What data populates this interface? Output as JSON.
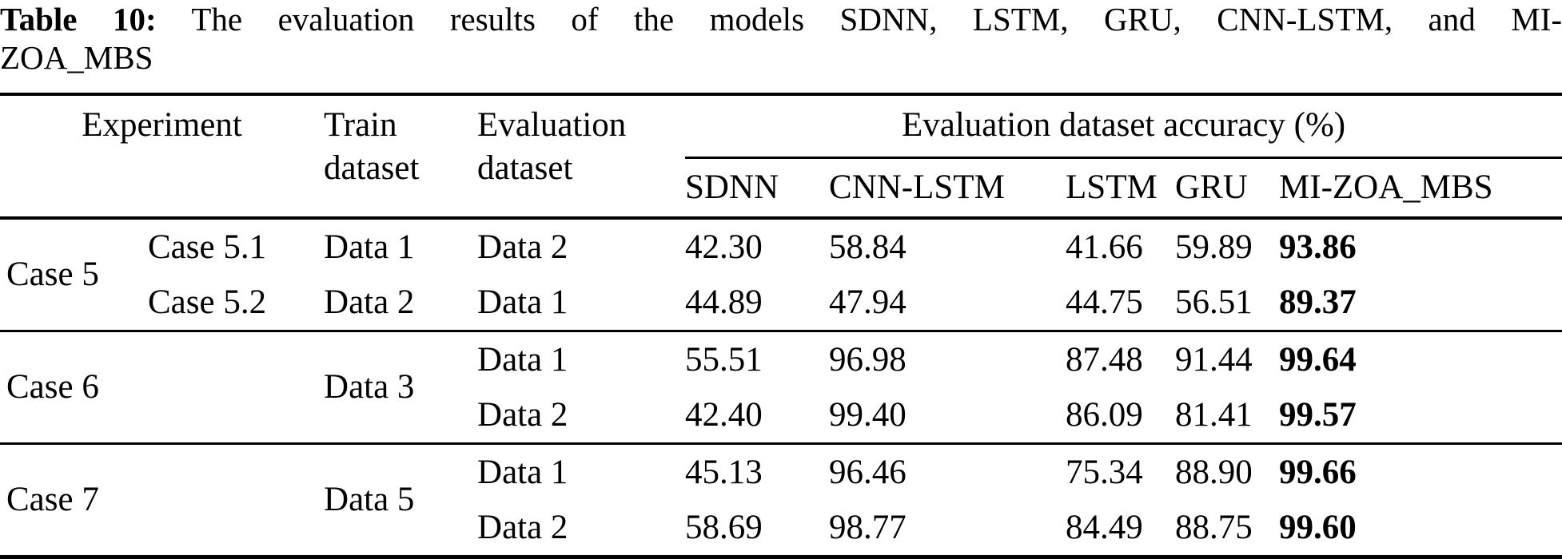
{
  "caption": {
    "label": "Table 10:",
    "line1_rest": "The evaluation results of the models SDNN, LSTM, GRU, CNN-LSTM, and MI-",
    "line2": "ZOA_MBS"
  },
  "table": {
    "columns": {
      "experiment": "Experiment",
      "train_dataset": "Train dataset",
      "evaluation_dataset": "Evaluation dataset",
      "accuracy_group": "Evaluation dataset accuracy (%)",
      "models": {
        "sdnn": "SDNN",
        "cnn_lstm": "CNN-LSTM",
        "lstm": "LSTM",
        "gru": "GRU",
        "mi_zoa_mbs": "MI-ZOA_MBS"
      }
    },
    "groups": [
      {
        "label": "Case 5",
        "rows": [
          {
            "sub_case": "Case 5.1",
            "train": "Data 1",
            "eval": "Data 2",
            "sdnn": "42.30",
            "cnn_lstm": "58.84",
            "lstm": "41.66",
            "gru": "59.89",
            "mi_zoa_mbs": "93.86"
          },
          {
            "sub_case": "Case 5.2",
            "train": "Data 2",
            "eval": "Data 1",
            "sdnn": "44.89",
            "cnn_lstm": "47.94",
            "lstm": "44.75",
            "gru": "56.51",
            "mi_zoa_mbs": "89.37"
          }
        ]
      },
      {
        "label": "Case 6",
        "train": "Data 3",
        "rows": [
          {
            "eval": "Data 1",
            "sdnn": "55.51",
            "cnn_lstm": "96.98",
            "lstm": "87.48",
            "gru": "91.44",
            "mi_zoa_mbs": "99.64"
          },
          {
            "eval": "Data 2",
            "sdnn": "42.40",
            "cnn_lstm": "99.40",
            "lstm": "86.09",
            "gru": "81.41",
            "mi_zoa_mbs": "99.57"
          }
        ]
      },
      {
        "label": "Case 7",
        "train": "Data 5",
        "rows": [
          {
            "eval": "Data 1",
            "sdnn": "45.13",
            "cnn_lstm": "96.46",
            "lstm": "75.34",
            "gru": "88.90",
            "mi_zoa_mbs": "99.66"
          },
          {
            "eval": "Data 2",
            "sdnn": "58.69",
            "cnn_lstm": "98.77",
            "lstm": "84.49",
            "gru": "88.75",
            "mi_zoa_mbs": "99.60"
          }
        ]
      }
    ]
  }
}
